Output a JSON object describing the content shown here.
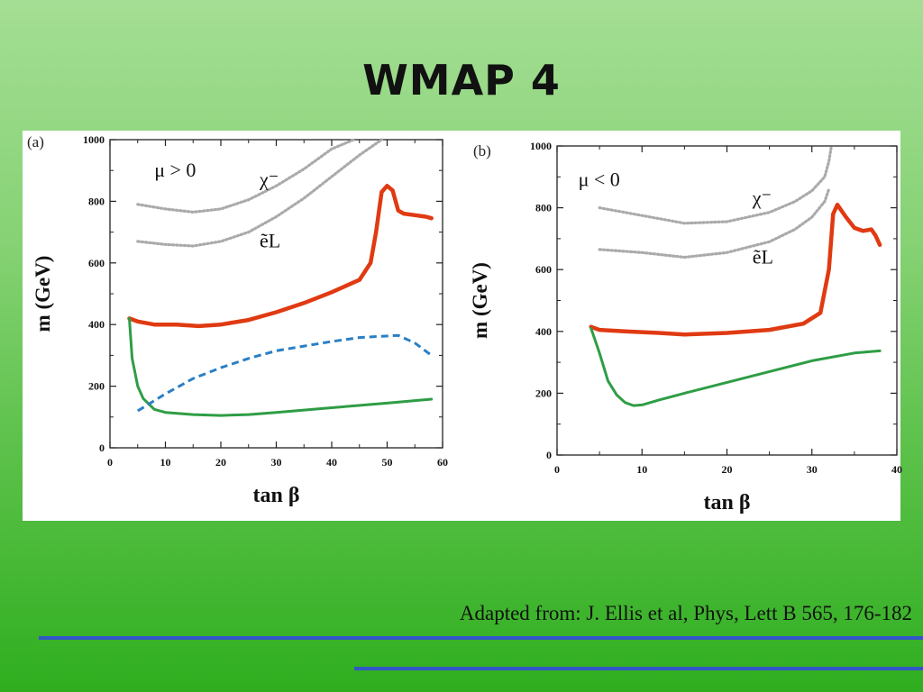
{
  "slide": {
    "title": "WMAP 4",
    "caption": "Adapted from: J. Ellis et al, Phys, Lett B 565, 176-182",
    "colors": {
      "background_top": "#a4de94",
      "background_bottom": "#2fae1f",
      "rule": "#3356c8"
    }
  },
  "chart_data": [
    {
      "type": "line",
      "panel_label": "(a)",
      "xlabel": "tan β",
      "ylabel": "m (GeV)",
      "xlim": [
        0,
        60
      ],
      "ylim": [
        0,
        1000
      ],
      "xticks": [
        0,
        10,
        20,
        30,
        40,
        50,
        60
      ],
      "yticks": [
        0,
        200,
        400,
        600,
        800,
        1000
      ],
      "annotations": [
        {
          "text": "μ > 0",
          "x": 8,
          "y": 880
        },
        {
          "text": "χ⁻",
          "x": 27,
          "y": 850
        },
        {
          "text": "ẽL",
          "x": 27,
          "y": 650
        }
      ],
      "series": [
        {
          "color": "#aaaaaa",
          "style": "dotted",
          "x": [
            5,
            10,
            15,
            20,
            25,
            30,
            35,
            40,
            44
          ],
          "y": [
            790,
            775,
            765,
            775,
            805,
            850,
            905,
            970,
            1000
          ]
        },
        {
          "color": "#aaaaaa",
          "style": "dotted",
          "x": [
            5,
            10,
            15,
            20,
            25,
            30,
            35,
            40,
            45,
            49
          ],
          "y": [
            670,
            660,
            655,
            670,
            700,
            750,
            810,
            880,
            950,
            1000
          ]
        },
        {
          "color": "#e03a12",
          "style": "solid-thick",
          "x": [
            3.5,
            5,
            8,
            12,
            16,
            20,
            25,
            30,
            35,
            40,
            45,
            47,
            48,
            49,
            50,
            51,
            52,
            53,
            55,
            57,
            58
          ],
          "y": [
            420,
            410,
            400,
            400,
            395,
            400,
            415,
            440,
            470,
            505,
            545,
            600,
            700,
            830,
            850,
            835,
            770,
            760,
            755,
            750,
            745
          ]
        },
        {
          "color": "#2e9d45",
          "style": "solid",
          "x": [
            3.5,
            4,
            5,
            6,
            8,
            10,
            15,
            20,
            25,
            30,
            40,
            50,
            58
          ],
          "y": [
            420,
            290,
            200,
            160,
            125,
            115,
            108,
            105,
            108,
            115,
            130,
            145,
            158
          ]
        },
        {
          "color": "#2a7fc4",
          "style": "dashed",
          "x": [
            5,
            10,
            15,
            20,
            25,
            30,
            35,
            40,
            45,
            52,
            55,
            58
          ],
          "y": [
            120,
            175,
            225,
            260,
            290,
            315,
            330,
            345,
            358,
            365,
            340,
            300
          ]
        }
      ]
    },
    {
      "type": "line",
      "panel_label": "(b)",
      "xlabel": "tan β",
      "ylabel": "m (GeV)",
      "xlim": [
        0,
        40
      ],
      "ylim": [
        0,
        1000
      ],
      "xticks": [
        0,
        10,
        20,
        30,
        40
      ],
      "yticks": [
        0,
        200,
        400,
        600,
        800,
        1000
      ],
      "annotations": [
        {
          "text": "μ < 0",
          "x": 2.5,
          "y": 870
        },
        {
          "text": "χ⁻",
          "x": 23,
          "y": 810
        },
        {
          "text": "ẽL",
          "x": 23,
          "y": 620
        }
      ],
      "series": [
        {
          "color": "#aaaaaa",
          "style": "dotted",
          "x": [
            5,
            10,
            15,
            20,
            25,
            28,
            30,
            31.5,
            32,
            32.3
          ],
          "y": [
            800,
            775,
            750,
            755,
            785,
            820,
            855,
            900,
            950,
            1000
          ]
        },
        {
          "color": "#aaaaaa",
          "style": "dotted",
          "x": [
            5,
            10,
            15,
            20,
            25,
            28,
            30,
            31.5,
            32
          ],
          "y": [
            665,
            655,
            640,
            655,
            690,
            730,
            770,
            820,
            860
          ]
        },
        {
          "color": "#e03a12",
          "style": "solid-thick",
          "x": [
            4,
            5,
            8,
            12,
            15,
            20,
            25,
            29,
            31,
            32,
            32.5,
            33,
            33.5,
            34,
            35,
            36,
            37,
            37.5,
            38
          ],
          "y": [
            415,
            405,
            400,
            395,
            390,
            395,
            405,
            425,
            460,
            600,
            780,
            810,
            790,
            770,
            735,
            725,
            730,
            710,
            680
          ]
        },
        {
          "color": "#2e9d45",
          "style": "solid",
          "x": [
            4,
            5,
            6,
            7,
            8,
            9,
            10,
            12,
            15,
            20,
            25,
            30,
            35,
            38
          ],
          "y": [
            410,
            330,
            240,
            195,
            170,
            160,
            162,
            178,
            200,
            235,
            270,
            305,
            330,
            337
          ]
        }
      ]
    }
  ]
}
